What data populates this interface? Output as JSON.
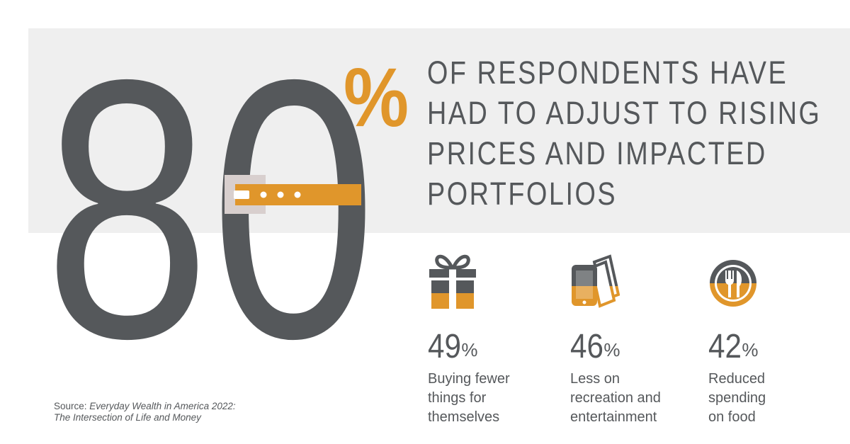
{
  "hero": {
    "digits": "80",
    "percent": "%",
    "headline_lines": [
      "OF RESPONDENTS HAVE",
      "HAD TO ADJUST TO RISING",
      "PRICES AND IMPACTED",
      "PORTFOLIOS"
    ]
  },
  "stats": [
    {
      "icon": "gift-icon",
      "value": "49",
      "unit": "%",
      "label_lines": [
        "Buying fewer",
        "things for",
        "themselves"
      ]
    },
    {
      "icon": "phone-tickets-icon",
      "value": "46",
      "unit": "%",
      "label_lines": [
        "Less on",
        "recreation and",
        "entertainment"
      ]
    },
    {
      "icon": "plate-utensils-icon",
      "value": "42",
      "unit": "%",
      "label_lines": [
        "Reduced",
        "spending",
        "on food"
      ]
    }
  ],
  "source": {
    "prefix": "Source: ",
    "title_line1": "Everyday Wealth in America 2022:",
    "title_line2": "The Intersection of Life and Money"
  },
  "colors": {
    "dark_gray": "#55585b",
    "accent_orange": "#e0962b",
    "band_gray": "#efefef",
    "buckle_gray": "#d8cfce"
  }
}
